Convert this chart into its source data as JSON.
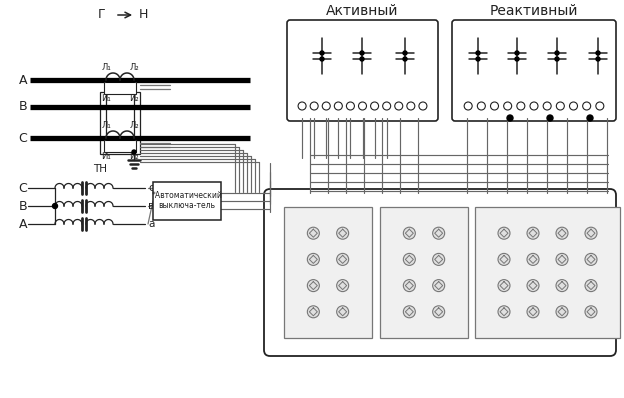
{
  "bg_color": "#ffffff",
  "lc": "#222222",
  "gc": "#777777",
  "label_active": "Активный",
  "label_reactive": "Реактивный",
  "label_TN": "ТН",
  "label_auto1": "*Автоматический",
  "label_auto2": "выключа-тель",
  "figsize": [
    6.24,
    3.98
  ],
  "dpi": 100
}
